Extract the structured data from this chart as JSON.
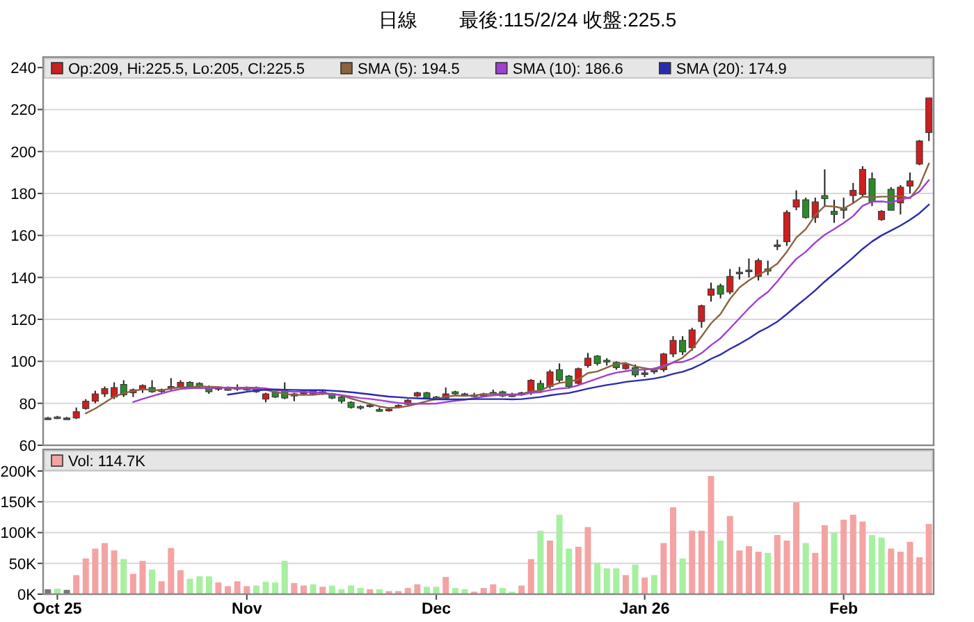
{
  "chart_data": [
    {
      "type": "candlestick",
      "title": "日線",
      "subtitle": "最後:115/2/24 收盤:225.5",
      "legend": "top left",
      "grid": "y",
      "tick_labels": "y",
      "categories": [
        null,
        null,
        null,
        null,
        null,
        null,
        null,
        null,
        null,
        null,
        null,
        null,
        null,
        null,
        null,
        null,
        null,
        null,
        null,
        null,
        null,
        null,
        null,
        null,
        null,
        null,
        null,
        null,
        null,
        null,
        null,
        null,
        null,
        null,
        null,
        null,
        null,
        null,
        null,
        null,
        null,
        null,
        null,
        null,
        null,
        null,
        null,
        null,
        null,
        null,
        null,
        null,
        null,
        null,
        null,
        null,
        null,
        null,
        null,
        null,
        null,
        null,
        null,
        null,
        null,
        null,
        null,
        null,
        null,
        null,
        null,
        null,
        null,
        null,
        null,
        null,
        null,
        null,
        null,
        null,
        null,
        null,
        null,
        null,
        null,
        null,
        null,
        null,
        null,
        null,
        null,
        null,
        null,
        null
      ],
      "ylim": [
        60,
        245
      ],
      "yticks": [
        60,
        80,
        100,
        120,
        140,
        160,
        180,
        200,
        220,
        240
      ],
      "series": [
        {
          "name": "Op:209, Hi:225.5, Lo:205, Cl:225.5",
          "type": "candlestick",
          "color": "#cc1f1f",
          "ohlc": [
            [
              73,
              73.5,
              72.5,
              73
            ],
            [
              73.5,
              74,
              72.5,
              73.2
            ],
            [
              73,
              73.5,
              72.5,
              73
            ],
            [
              73,
              78,
              72.5,
              76
            ],
            [
              77.5,
              82,
              77,
              81
            ],
            [
              81,
              86,
              80,
              84.5
            ],
            [
              84.5,
              88,
              83,
              87
            ],
            [
              83,
              90,
              82,
              87.5
            ],
            [
              89,
              91,
              83,
              84
            ],
            [
              85,
              87,
              83,
              86.5
            ],
            [
              86.5,
              89,
              85,
              88.5
            ],
            [
              87.5,
              91,
              85,
              85.5
            ],
            [
              86.5,
              87,
              85,
              86.5
            ],
            [
              87.5,
              92,
              86,
              88
            ],
            [
              88,
              91,
              87,
              90
            ],
            [
              90,
              90.5,
              87.5,
              88
            ],
            [
              89.5,
              90,
              87.5,
              88
            ],
            [
              88,
              88.5,
              84.5,
              85.5
            ],
            [
              87,
              88,
              86,
              87.5
            ],
            [
              87,
              88,
              86,
              86.8
            ],
            [
              87.5,
              89,
              86,
              87.5
            ],
            [
              87.2,
              88,
              86,
              87
            ],
            [
              87.5,
              88,
              85,
              85.5
            ],
            [
              82,
              85,
              80.5,
              84.5
            ],
            [
              85.5,
              86,
              82.5,
              83
            ],
            [
              86,
              90,
              82,
              82.5
            ],
            [
              83.5,
              85,
              81,
              84.5
            ],
            [
              84.5,
              86,
              84,
              85.5
            ],
            [
              86,
              86.5,
              84,
              84.5
            ],
            [
              85,
              86,
              84,
              85.5
            ],
            [
              84.5,
              85,
              82,
              82.5
            ],
            [
              83,
              84,
              80,
              81
            ],
            [
              80.5,
              81,
              77.5,
              78
            ],
            [
              78.5,
              79,
              77,
              78
            ],
            [
              79,
              80,
              78,
              79.2
            ],
            [
              77,
              78,
              76,
              76.5
            ],
            [
              76.8,
              77.8,
              76,
              77.2
            ],
            [
              78.5,
              79.5,
              78,
              79
            ],
            [
              79.5,
              82,
              79,
              81.5
            ],
            [
              83.5,
              85.5,
              83,
              85
            ],
            [
              85,
              85.5,
              82,
              82.5
            ],
            [
              83,
              83.5,
              81.5,
              82
            ],
            [
              82.5,
              87.5,
              82,
              84.5
            ],
            [
              85.5,
              86,
              84,
              84.5
            ],
            [
              84.5,
              85,
              83.5,
              84.2
            ],
            [
              84,
              85,
              83,
              84
            ],
            [
              83.5,
              85,
              83,
              84.5
            ],
            [
              85,
              86.5,
              84,
              85.2
            ],
            [
              85.5,
              86,
              83,
              83.5
            ],
            [
              84,
              85,
              83,
              84
            ],
            [
              84,
              85.5,
              83.5,
              85
            ],
            [
              85,
              91.5,
              84,
              91
            ],
            [
              89.5,
              91,
              85,
              86.5
            ],
            [
              88,
              96,
              87,
              95
            ],
            [
              96,
              99,
              90,
              91
            ],
            [
              93,
              93.5,
              87,
              88
            ],
            [
              89.5,
              97,
              89,
              96.5
            ],
            [
              98,
              104,
              97,
              101.5
            ],
            [
              102.5,
              103,
              98,
              99
            ],
            [
              100.5,
              101.5,
              98,
              100
            ],
            [
              99.5,
              100,
              96,
              97
            ],
            [
              96.5,
              99,
              96,
              98.5
            ],
            [
              97,
              98.5,
              92.5,
              93.5
            ],
            [
              94,
              96,
              92.5,
              94.5
            ],
            [
              95,
              97,
              94,
              95.8
            ],
            [
              96,
              104,
              95,
              103.5
            ],
            [
              103.5,
              112,
              102,
              110
            ],
            [
              110,
              112,
              103,
              104.5
            ],
            [
              106.5,
              116,
              105,
              115
            ],
            [
              119,
              127,
              116,
              126.5
            ],
            [
              131.5,
              137.5,
              128.5,
              134.5
            ],
            [
              136,
              137,
              130,
              132
            ],
            [
              133,
              144,
              132,
              140.5
            ],
            [
              142,
              145,
              139,
              142.5
            ],
            [
              143,
              149,
              140,
              143.5
            ],
            [
              140.5,
              149,
              138.5,
              148
            ],
            [
              144,
              148,
              141,
              143
            ],
            [
              155,
              158,
              153,
              155.5
            ],
            [
              157,
              172,
              155,
              171
            ],
            [
              173.5,
              181.5,
              172,
              177
            ],
            [
              177,
              178,
              168,
              168.5
            ],
            [
              168.5,
              178,
              166,
              176
            ],
            [
              179,
              191.5,
              174,
              177.5
            ],
            [
              171.5,
              177,
              166,
              170
            ],
            [
              173,
              178,
              168,
              172
            ],
            [
              179,
              185,
              175,
              181.5
            ],
            [
              179.5,
              193,
              178,
              191.5
            ],
            [
              187,
              190,
              174,
              176
            ],
            [
              167.5,
              172,
              167,
              171.5
            ],
            [
              182,
              183,
              172,
              172
            ],
            [
              175.5,
              184,
              170,
              183
            ],
            [
              183.5,
              190,
              180,
              186
            ],
            [
              194,
              205.5,
              193.5,
              205
            ],
            [
              209,
              225.5,
              205,
              225.5
            ]
          ],
          "colors": [
            "#555555",
            "#2a8a2a",
            "#555555",
            "#cc1f1f",
            "#cc1f1f",
            "#cc1f1f",
            "#cc1f1f",
            "#cc1f1f",
            "#2a8a2a",
            "#cc1f1f",
            "#cc1f1f",
            "#2a8a2a",
            "#555555",
            "#cc1f1f",
            "#cc1f1f",
            "#2a8a2a",
            "#2a8a2a",
            "#2a8a2a",
            "#cc1f1f",
            "#2a8a2a",
            "#555555",
            "#2a8a2a",
            "#2a8a2a",
            "#cc1f1f",
            "#2a8a2a",
            "#2a8a2a",
            "#cc1f1f",
            "#cc1f1f",
            "#2a8a2a",
            "#cc1f1f",
            "#2a8a2a",
            "#2a8a2a",
            "#2a8a2a",
            "#2a8a2a",
            "#555555",
            "#2a8a2a",
            "#cc1f1f",
            "#cc1f1f",
            "#cc1f1f",
            "#cc1f1f",
            "#2a8a2a",
            "#2a8a2a",
            "#cc1f1f",
            "#2a8a2a",
            "#555555",
            "#555555",
            "#cc1f1f",
            "#555555",
            "#2a8a2a",
            "#555555",
            "#cc1f1f",
            "#cc1f1f",
            "#2a8a2a",
            "#cc1f1f",
            "#2a8a2a",
            "#2a8a2a",
            "#cc1f1f",
            "#cc1f1f",
            "#2a8a2a",
            "#2a8a2a",
            "#2a8a2a",
            "#cc1f1f",
            "#2a8a2a",
            "#555555",
            "#555555",
            "#cc1f1f",
            "#cc1f1f",
            "#2a8a2a",
            "#cc1f1f",
            "#cc1f1f",
            "#cc1f1f",
            "#2a8a2a",
            "#cc1f1f",
            "#555555",
            "#555555",
            "#cc1f1f",
            "#2a8a2a",
            "#555555",
            "#cc1f1f",
            "#cc1f1f",
            "#2a8a2a",
            "#cc1f1f",
            "#2a8a2a",
            "#2a8a2a",
            "#2a8a2a",
            "#cc1f1f",
            "#cc1f1f",
            "#2a8a2a",
            "#cc1f1f",
            "#2a8a2a",
            "#cc1f1f",
            "#cc1f1f",
            "#cc1f1f",
            "#cc1f1f"
          ]
        },
        {
          "name": "SMA (5): 194.5",
          "type": "line",
          "color": "#8b6340",
          "values": [
            null,
            null,
            null,
            null,
            75.2,
            77.5,
            80.3,
            83.2,
            84.8,
            85.9,
            86.7,
            86.4,
            86.2,
            87,
            87.7,
            87.6,
            88.1,
            87.9,
            87.8,
            87.2,
            87.1,
            86.9,
            86.9,
            86.3,
            85.5,
            84.5,
            84,
            84,
            84,
            84.5,
            84.5,
            83.8,
            82.3,
            81,
            79.7,
            78.5,
            77.8,
            78,
            78.7,
            79.8,
            81,
            82,
            83.1,
            83.7,
            83.5,
            83.8,
            84.3,
            84.5,
            84.3,
            84.2,
            84.4,
            85.7,
            86,
            88.3,
            89.7,
            90.3,
            91.4,
            94.4,
            95.2,
            97,
            98.8,
            99.2,
            97.6,
            96.7,
            95.9,
            97.2,
            99.5,
            101.7,
            105.8,
            111.9,
            118.1,
            122.5,
            129.7,
            135.2,
            138.6,
            141.3,
            143.5,
            146.5,
            152.2,
            158.9,
            163,
            169.6,
            174,
            173.8,
            172.8,
            175.4,
            178.5,
            178.2,
            178.5,
            178.5,
            178.8,
            177.7,
            183.5,
            194.3
          ]
        },
        {
          "name": "SMA (10): 186.6",
          "type": "line",
          "color": "#a040d0",
          "values": [
            null,
            null,
            null,
            null,
            null,
            null,
            null,
            null,
            null,
            80.6,
            82.1,
            83.4,
            84.7,
            85.9,
            86.8,
            87.2,
            87.3,
            87.1,
            87.4,
            87.5,
            87.4,
            87.5,
            87.4,
            87.1,
            86.4,
            85.8,
            85.5,
            85.5,
            85.2,
            85,
            84.5,
            83.9,
            83.2,
            82.5,
            82.1,
            81.5,
            80.8,
            80.2,
            79.9,
            79.8,
            79.8,
            79.9,
            80.6,
            81.2,
            81.7,
            82.4,
            83.2,
            83.8,
            84,
            83.9,
            84.1,
            85,
            85.3,
            86.3,
            87,
            87.4,
            88.6,
            90.2,
            91.8,
            93.4,
            94.6,
            95.3,
            96,
            96,
            96.5,
            98,
            99.4,
            99.7,
            101.3,
            103.9,
            107.7,
            111,
            115.7,
            120.5,
            125.3,
            129.7,
            133,
            138.1,
            143.7,
            148.8,
            152.2,
            156.6,
            160.3,
            163,
            165.9,
            169.2,
            174.1,
            176.1,
            176.2,
            175.7,
            177.1,
            178.1,
            180.9,
            186.4
          ]
        },
        {
          "name": "SMA (20): 174.9",
          "type": "line",
          "color": "#2a2ab0",
          "values": [
            null,
            null,
            null,
            null,
            null,
            null,
            null,
            null,
            null,
            null,
            null,
            null,
            null,
            null,
            null,
            null,
            null,
            null,
            null,
            84.1,
            84.8,
            85.5,
            86.1,
            86.5,
            86.6,
            86.5,
            86.4,
            86.3,
            86.3,
            86.3,
            86,
            85.7,
            85.3,
            84.8,
            84.3,
            83.7,
            83.2,
            82.9,
            82.6,
            82.4,
            82.2,
            81.9,
            81.9,
            81.9,
            81.9,
            82,
            82,
            82,
            82,
            81.9,
            82,
            82.5,
            83,
            83.8,
            84.4,
            84.9,
            85.9,
            87,
            87.9,
            88.7,
            89.4,
            90.2,
            90.7,
            91.2,
            91.8,
            92.7,
            94,
            95,
            96.6,
            98.7,
            101.2,
            103.2,
            105.9,
            108.3,
            110.9,
            113.9,
            116.2,
            118.9,
            122.5,
            126.4,
            130,
            133.8,
            138,
            141.8,
            145.6,
            149.5,
            153.6,
            157.1,
            160,
            162.3,
            164.7,
            167.4,
            170.6,
            174.7
          ]
        }
      ]
    },
    {
      "type": "bar",
      "legend": "top left",
      "grid": "y",
      "categories": [
        null,
        "Oct 25",
        null,
        null,
        null,
        null,
        null,
        null,
        null,
        null,
        null,
        null,
        null,
        null,
        null,
        null,
        null,
        null,
        null,
        null,
        null,
        "Nov",
        null,
        null,
        null,
        null,
        null,
        null,
        null,
        null,
        null,
        null,
        null,
        null,
        null,
        null,
        null,
        null,
        null,
        null,
        null,
        "Dec",
        null,
        null,
        null,
        null,
        null,
        null,
        null,
        null,
        null,
        null,
        null,
        null,
        null,
        null,
        null,
        null,
        null,
        null,
        null,
        null,
        null,
        "Jan 26",
        null,
        null,
        null,
        null,
        null,
        null,
        null,
        null,
        null,
        null,
        null,
        null,
        null,
        null,
        null,
        null,
        null,
        null,
        null,
        null,
        "Feb",
        null,
        null,
        null,
        null,
        null,
        null,
        null,
        null,
        null
      ],
      "ylim": [
        0,
        235
      ],
      "yticks": [
        {
          "value": 0,
          "label": "0K"
        },
        {
          "value": 50,
          "label": "50K"
        },
        {
          "value": 100,
          "label": "100K"
        },
        {
          "value": 150,
          "label": "150K"
        },
        {
          "value": 200,
          "label": "200K"
        }
      ],
      "series": [
        {
          "name": "Vol: 114.7K",
          "color": "#f4a3a3",
          "values": [
            8,
            9,
            7,
            31,
            58,
            74,
            83,
            71,
            57,
            33,
            54,
            40,
            21,
            75,
            39,
            25,
            29,
            29,
            19,
            13,
            21,
            13,
            14,
            20,
            19,
            54,
            18,
            14,
            16,
            12,
            14,
            8,
            14,
            10,
            8,
            8,
            5,
            5,
            10,
            16,
            12,
            12,
            28,
            10,
            8,
            4,
            10,
            16,
            10,
            4,
            14,
            57,
            103,
            87,
            129,
            74,
            77,
            109,
            51,
            42,
            42,
            31,
            48,
            27,
            31,
            83,
            141,
            58,
            103,
            103,
            192,
            87,
            127,
            71,
            78,
            69,
            67,
            96,
            87,
            149,
            83,
            67,
            112,
            100,
            121,
            129,
            118,
            96,
            92,
            74,
            69,
            85,
            60,
            114
          ],
          "colors": [
            "#777777",
            "#a6f0a0",
            "#777777",
            "#f4a3a3",
            "#f4a3a3",
            "#f4a3a3",
            "#f4a3a3",
            "#f4a3a3",
            "#a6f0a0",
            "#f4a3a3",
            "#f4a3a3",
            "#a6f0a0",
            "#f4a3a3",
            "#f4a3a3",
            "#f4a3a3",
            "#a6f0a0",
            "#a6f0a0",
            "#a6f0a0",
            "#f4a3a3",
            "#f4a3a3",
            "#f4a3a3",
            "#f4a3a3",
            "#a6f0a0",
            "#a6f0a0",
            "#a6f0a0",
            "#a6f0a0",
            "#f4a3a3",
            "#f4a3a3",
            "#a6f0a0",
            "#f4a3a3",
            "#a6f0a0",
            "#a6f0a0",
            "#a6f0a0",
            "#a6f0a0",
            "#f4a3a3",
            "#a6f0a0",
            "#f4a3a3",
            "#f4a3a3",
            "#f4a3a3",
            "#f4a3a3",
            "#a6f0a0",
            "#a6f0a0",
            "#f4a3a3",
            "#a6f0a0",
            "#a6f0a0",
            "#f4a3a3",
            "#f4a3a3",
            "#f4a3a3",
            "#a6f0a0",
            "#a6f0a0",
            "#f4a3a3",
            "#f4a3a3",
            "#a6f0a0",
            "#f4a3a3",
            "#a6f0a0",
            "#a6f0a0",
            "#f4a3a3",
            "#f4a3a3",
            "#a6f0a0",
            "#a6f0a0",
            "#a6f0a0",
            "#f4a3a3",
            "#a6f0a0",
            "#f4a3a3",
            "#a6f0a0",
            "#f4a3a3",
            "#f4a3a3",
            "#a6f0a0",
            "#f4a3a3",
            "#f4a3a3",
            "#f4a3a3",
            "#a6f0a0",
            "#f4a3a3",
            "#f4a3a3",
            "#f4a3a3",
            "#f4a3a3",
            "#a6f0a0",
            "#f4a3a3",
            "#f4a3a3",
            "#f4a3a3",
            "#a6f0a0",
            "#f4a3a3",
            "#f4a3a3",
            "#a6f0a0",
            "#f4a3a3",
            "#f4a3a3",
            "#f4a3a3",
            "#a6f0a0",
            "#a6f0a0",
            "#f4a3a3",
            "#f4a3a3",
            "#f4a3a3",
            "#f4a3a3",
            "#f4a3a3"
          ]
        }
      ]
    }
  ]
}
